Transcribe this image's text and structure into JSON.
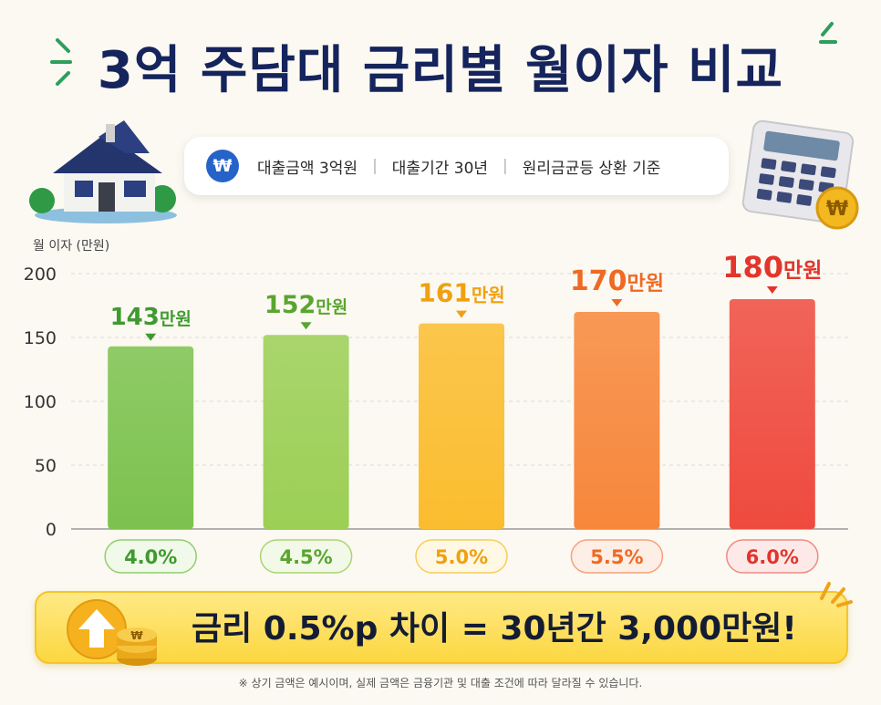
{
  "title": "3억 주담대 금리별 월이자 비교",
  "info": {
    "badge": "₩",
    "items": [
      "대출금액 3억원",
      "대출기간 30년",
      "원리금균등 상환 기준"
    ],
    "separator": "|"
  },
  "chart_data": {
    "type": "bar",
    "ylabel": "월 이자 (만원)",
    "ylim": [
      0,
      200
    ],
    "yticks": [
      0,
      50,
      100,
      150,
      200
    ],
    "categories": [
      "4.0%",
      "4.5%",
      "5.0%",
      "5.5%",
      "6.0%"
    ],
    "values": [
      143,
      152,
      161,
      170,
      180
    ],
    "value_labels": [
      "143",
      "152",
      "161",
      "170",
      "180"
    ],
    "value_unit": "만원",
    "grid": true,
    "colors": [
      "#7cc24e",
      "#9bcf55",
      "#fbbd2f",
      "#f7873b",
      "#ef4a3e"
    ]
  },
  "banner": {
    "text": "금리 0.5%p 차이 = 30년간 3,000만원!"
  },
  "footnote": "※ 상기 금액은 예시이며, 실제 금액은 금융기관 및 대출 조건에 따라 달라질 수 있습니다.",
  "icons": [
    "house-icon",
    "calculator-icon",
    "coin-icon",
    "arrow-up-icon",
    "coin-stack-icon"
  ]
}
